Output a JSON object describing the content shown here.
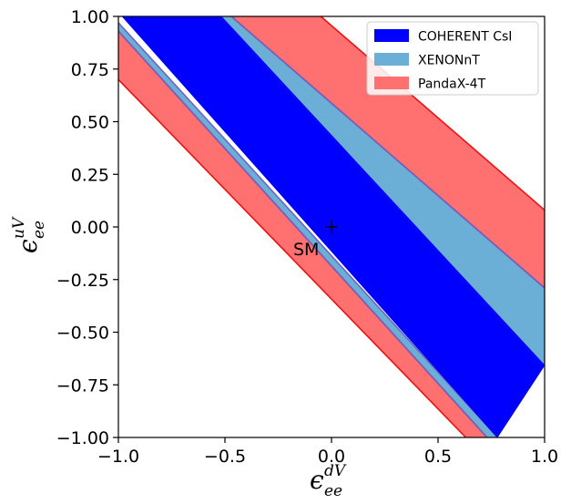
{
  "chart_data": {
    "type": "area",
    "title": "",
    "xlabel": {
      "symbol": "ϵ",
      "sup": "dV",
      "sub": "ee"
    },
    "ylabel": {
      "symbol": "ϵ",
      "sup": "uV",
      "sub": "ee"
    },
    "xlim": [
      -1.0,
      1.0
    ],
    "ylim": [
      -1.0,
      1.0
    ],
    "xticks": [
      -1.0,
      -0.5,
      0.0,
      0.5,
      1.0
    ],
    "xtick_labels": [
      "−1.0",
      "−0.5",
      "0.0",
      "0.5",
      "1.0"
    ],
    "yticks": [
      -1.0,
      -0.75,
      -0.5,
      -0.25,
      0.0,
      0.25,
      0.5,
      0.75,
      1.0
    ],
    "ytick_labels": [
      "−1.00",
      "−0.75",
      "−0.50",
      "−0.25",
      "0.00",
      "0.25",
      "0.50",
      "0.75",
      "1.00"
    ],
    "grid": false,
    "legend_position": "upper right",
    "series": [
      {
        "name": "PandaX-4T",
        "color": "#ff7070",
        "edge_color": "#ee1111",
        "bands": [
          {
            "lower": [
              [
                -1.0,
                0.7
              ],
              [
                0.63,
                -1.0
              ]
            ],
            "upper": [
              [
                -1.0,
                0.93
              ],
              [
                0.73,
                -1.0
              ]
            ]
          },
          {
            "lower": [
              [
                -0.47,
                1.0
              ],
              [
                1.0,
                -0.29
              ]
            ],
            "upper": [
              [
                -0.05,
                1.0
              ],
              [
                1.0,
                0.08
              ]
            ]
          }
        ]
      },
      {
        "name": "XENONnT",
        "color": "#6baed6",
        "edge_color": "#6f63c9",
        "bands": [
          {
            "lower": [
              [
                -1.0,
                0.93
              ],
              [
                0.73,
                -1.0
              ]
            ],
            "upper": [
              [
                -1.0,
                0.97
              ],
              [
                0.78,
                -1.0
              ]
            ]
          },
          {
            "lower": [
              [
                -0.52,
                1.0
              ],
              [
                1.0,
                -0.66
              ]
            ],
            "upper": [
              [
                -0.47,
                1.0
              ],
              [
                1.0,
                -0.29
              ]
            ]
          }
        ]
      },
      {
        "name": "COHERENT CsI",
        "color": "#0000ff",
        "edge_color": "#0000ff",
        "bands": [
          {
            "lower": [
              [
                -0.98,
                1.0
              ],
              [
                0.78,
                -1.0
              ]
            ],
            "upper": [
              [
                -0.52,
                1.0
              ],
              [
                1.0,
                -0.66
              ]
            ]
          }
        ]
      }
    ],
    "legend_order": [
      "COHERENT CsI",
      "XENONnT",
      "PandaX-4T"
    ],
    "markers": [
      {
        "label": "SM",
        "x": 0.0,
        "y": 0.0,
        "symbol": "+"
      }
    ]
  }
}
